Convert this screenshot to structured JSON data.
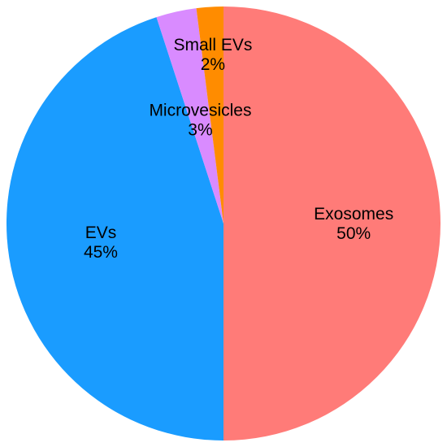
{
  "chart_data": {
    "type": "pie",
    "start_angle_deg": 0,
    "direction": "clockwise",
    "slices": [
      {
        "label": "Exosomes",
        "value": 50,
        "value_label": "50%",
        "color": "#FF7B78"
      },
      {
        "label": "EVs",
        "value": 45,
        "value_label": "45%",
        "color": "#1A9CFF"
      },
      {
        "label": "Microvesicles",
        "value": 3,
        "value_label": "3%",
        "color": "#D98BFF"
      },
      {
        "label": "Small EVs",
        "value": 2,
        "value_label": "2%",
        "color": "#FF8C00"
      }
    ]
  }
}
